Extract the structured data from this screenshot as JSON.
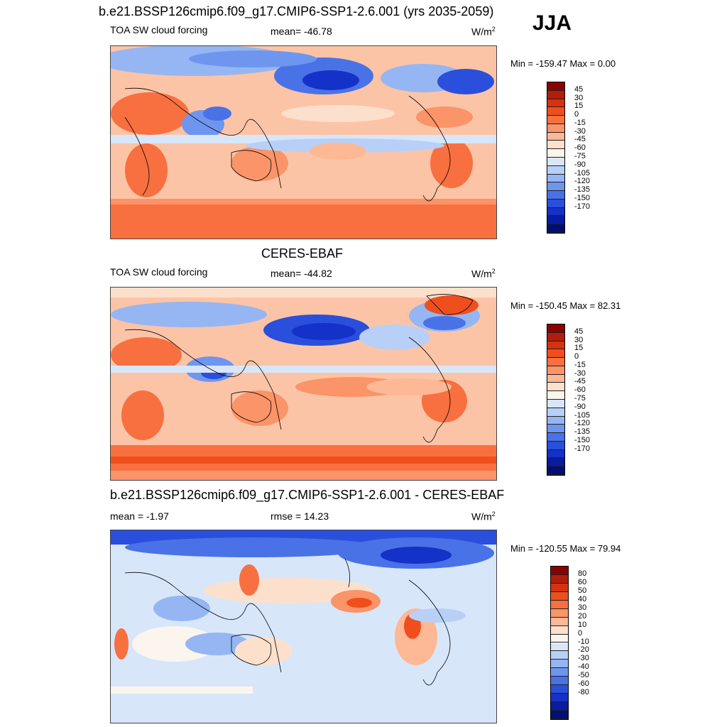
{
  "season": "JJA",
  "panels": [
    {
      "title": "b.e21.BSSP126cmip6.f09_g17.CMIP6-SSP1-2.6.001 (yrs 2035-2059)",
      "left_label": "TOA SW cloud forcing",
      "center_label": "mean= -46.78",
      "units_base": "W/m",
      "units_exp": "2",
      "minmax": "Min = -159.47 Max =   0.00"
    },
    {
      "title": "CERES-EBAF",
      "left_label": "TOA SW cloud forcing",
      "center_label": "mean= -44.82",
      "units_base": "W/m",
      "units_exp": "2",
      "minmax": "Min = -150.45 Max =  82.31"
    },
    {
      "title": "b.e21.BSSP126cmip6.f09_g17.CMIP6-SSP1-2.6.001 - CERES-EBAF",
      "left_label": "mean =  -1.97",
      "center_label": "rmse =  14.23",
      "units_base": "W/m",
      "units_exp": "2",
      "minmax": "Min = -120.55 Max =  79.94"
    }
  ],
  "chart_data": [
    {
      "type": "heatmap",
      "title": "b.e21.BSSP126cmip6.f09_g17.CMIP6-SSP1-2.6.001 (yrs 2035-2059)",
      "variable": "TOA SW cloud forcing",
      "units": "W/m2",
      "mean": -46.78,
      "min": -159.47,
      "max": 0.0,
      "colorbar_levels": [
        45,
        30,
        15,
        0,
        -15,
        -30,
        -45,
        -60,
        -75,
        -90,
        -105,
        -120,
        -135,
        -150,
        -170
      ],
      "colorbar_colors": [
        "#8b0000",
        "#b31d0b",
        "#d6320f",
        "#ef4f1d",
        "#f87040",
        "#fb9468",
        "#fdb896",
        "#fde0cc",
        "#fbf5ee",
        "#d8e6fa",
        "#b8d0f7",
        "#95b6f3",
        "#6f96ee",
        "#4a72e7",
        "#2a4fdc",
        "#1431c8",
        "#081c9e",
        "#000f73"
      ]
    },
    {
      "type": "heatmap",
      "title": "CERES-EBAF",
      "variable": "TOA SW cloud forcing",
      "units": "W/m2",
      "mean": -44.82,
      "min": -150.45,
      "max": 82.31,
      "colorbar_levels": [
        45,
        30,
        15,
        0,
        -15,
        -30,
        -45,
        -60,
        -75,
        -90,
        -105,
        -120,
        -135,
        -150,
        -170
      ],
      "colorbar_colors": [
        "#8b0000",
        "#b31d0b",
        "#d6320f",
        "#ef4f1d",
        "#f87040",
        "#fb9468",
        "#fdb896",
        "#fde0cc",
        "#fbf5ee",
        "#d8e6fa",
        "#b8d0f7",
        "#95b6f3",
        "#6f96ee",
        "#4a72e7",
        "#2a4fdc",
        "#1431c8",
        "#081c9e",
        "#000f73"
      ]
    },
    {
      "type": "heatmap",
      "title": "b.e21.BSSP126cmip6.f09_g17.CMIP6-SSP1-2.6.001 - CERES-EBAF",
      "units": "W/m2",
      "mean": -1.97,
      "rmse": 14.23,
      "min": -120.55,
      "max": 79.94,
      "colorbar_levels": [
        80,
        60,
        50,
        40,
        30,
        20,
        10,
        0,
        -10,
        -20,
        -30,
        -40,
        -50,
        -60,
        -80
      ],
      "colorbar_colors": [
        "#8b0000",
        "#b31d0b",
        "#d6320f",
        "#ef4f1d",
        "#f87040",
        "#fb9468",
        "#fdb896",
        "#fde0cc",
        "#fbf5ee",
        "#d8e6fa",
        "#b8d0f7",
        "#95b6f3",
        "#6f96ee",
        "#4a72e7",
        "#2a4fdc",
        "#1431c8",
        "#081c9e",
        "#000f73"
      ]
    }
  ]
}
